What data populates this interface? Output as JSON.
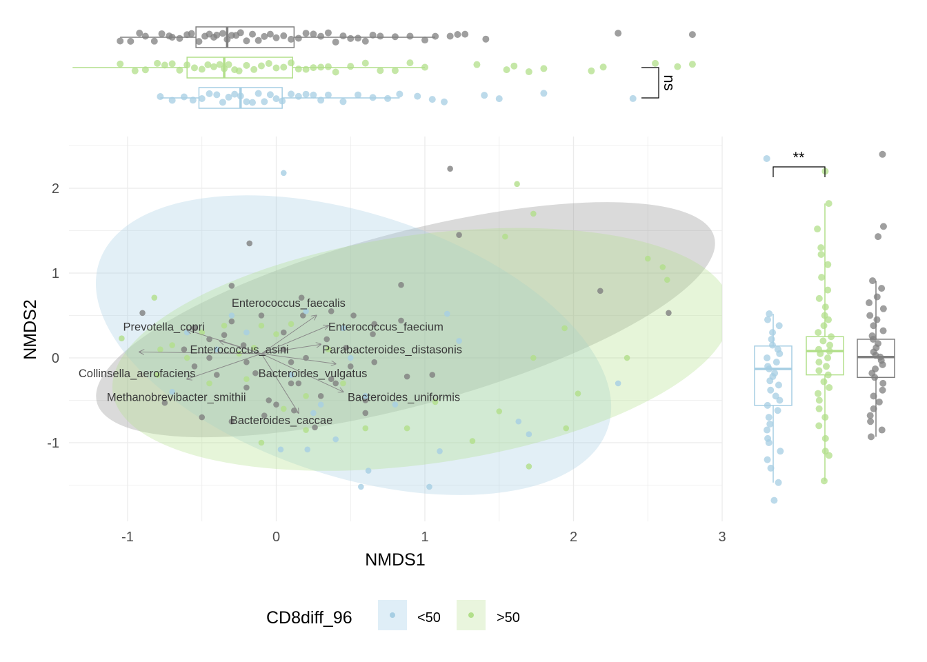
{
  "chart_data": {
    "type": "scatter",
    "title": "",
    "xlabel": "NMDS1",
    "ylabel": "NMDS2",
    "xlim": [
      -1.4,
      3.0
    ],
    "ylim": [
      -1.9,
      2.5
    ],
    "x_ticks": [
      -1,
      0,
      1,
      2,
      3
    ],
    "y_ticks": [
      -1,
      0,
      1,
      2
    ],
    "grid": true,
    "legend": {
      "title": "CD8diff_96",
      "position": "bottom",
      "entries": [
        {
          "label": "<50",
          "color": "#a6cee3"
        },
        {
          "label": ">50",
          "color": "#b2df8a"
        }
      ]
    },
    "colors": {
      "lt50": "#a6cee3",
      "gt50": "#b2df8a",
      "other": "#7f7f7f"
    },
    "series": [
      {
        "key": "gray",
        "color": "#7f7f7f",
        "ellipse": {
          "cx": 0.87,
          "cy": 0.45,
          "rx": 2.15,
          "ry": 1.02,
          "angle": 15
        },
        "points": [
          [
            -0.9,
            0.53
          ],
          [
            -0.55,
            0.35
          ],
          [
            -0.3,
            0.43
          ],
          [
            -0.62,
            0.1
          ],
          [
            -0.45,
            0.0
          ],
          [
            -0.2,
            -0.05
          ],
          [
            0.05,
            0.3
          ],
          [
            -0.35,
            0.27
          ],
          [
            -0.1,
            0.5
          ],
          [
            0.2,
            0.0
          ],
          [
            0.15,
            -0.3
          ],
          [
            0.3,
            -0.45
          ],
          [
            -0.05,
            -0.5
          ],
          [
            0.0,
            -0.55
          ],
          [
            -0.2,
            -0.35
          ],
          [
            -0.4,
            -0.2
          ],
          [
            -0.3,
            -0.75
          ],
          [
            -0.75,
            -0.53
          ],
          [
            -0.5,
            -0.7
          ],
          [
            0.12,
            -0.62
          ],
          [
            0.26,
            -0.82
          ],
          [
            0.37,
            0.55
          ],
          [
            0.52,
            0.5
          ],
          [
            0.66,
            0.4
          ],
          [
            0.65,
            0.28
          ],
          [
            0.66,
            -0.05
          ],
          [
            0.5,
            -0.1
          ],
          [
            -0.3,
            0.85
          ],
          [
            0.17,
            0.71
          ],
          [
            0.18,
            0.5
          ],
          [
            -0.18,
            1.35
          ],
          [
            0.84,
            0.44
          ],
          [
            1.05,
            -0.2
          ],
          [
            0.88,
            -0.22
          ],
          [
            1.17,
            2.23
          ],
          [
            1.23,
            1.45
          ],
          [
            0.84,
            0.86
          ],
          [
            2.18,
            0.79
          ],
          [
            2.64,
            0.53
          ],
          [
            0.37,
            -0.25
          ],
          [
            0.1,
            -0.3
          ],
          [
            0.1,
            -0.05
          ],
          [
            -0.55,
            -0.1
          ],
          [
            -0.14,
            -0.18
          ],
          [
            -0.22,
            0.15
          ],
          [
            -0.45,
            0.22
          ],
          [
            0.05,
            0.1
          ],
          [
            0.4,
            -0.3
          ],
          [
            0.6,
            -0.65
          ],
          [
            0.6,
            -0.5
          ],
          [
            0.47,
            0.12
          ],
          [
            0.34,
            0.22
          ],
          [
            -0.08,
            -0.68
          ]
        ]
      },
      {
        "key": "lt50",
        "color": "#a6cee3",
        "ellipse": {
          "cx": 0.52,
          "cy": 0.15,
          "rx": 1.8,
          "ry": 1.55,
          "angle": -18
        },
        "points": [
          [
            0.05,
            2.18
          ],
          [
            0.45,
            0.35
          ],
          [
            0.6,
            -0.45
          ],
          [
            0.8,
            -0.55
          ],
          [
            1.15,
            0.52
          ],
          [
            1.23,
            0.2
          ],
          [
            1.03,
            -1.52
          ],
          [
            1.1,
            -1.1
          ],
          [
            0.62,
            -1.33
          ],
          [
            0.57,
            -1.52
          ],
          [
            0.4,
            -0.96
          ],
          [
            0.03,
            -1.08
          ],
          [
            0.21,
            -1.08
          ],
          [
            1.63,
            -0.75
          ],
          [
            1.7,
            -0.9
          ],
          [
            2.3,
            -0.3
          ],
          [
            -0.6,
            0.3
          ],
          [
            -0.4,
            0.1
          ],
          [
            -0.2,
            0.3
          ],
          [
            0.1,
            -0.2
          ],
          [
            -0.7,
            -0.4
          ],
          [
            -0.3,
            0.5
          ],
          [
            0.2,
            0.55
          ],
          [
            0.25,
            -0.65
          ],
          [
            0.3,
            -0.55
          ],
          [
            0.5,
            0.0
          ]
        ]
      },
      {
        "key": "gt50",
        "color": "#b2df8a",
        "ellipse": {
          "cx": 0.98,
          "cy": 0.1,
          "rx": 2.1,
          "ry": 1.35,
          "angle": 8
        },
        "points": [
          [
            1.62,
            2.05
          ],
          [
            1.73,
            1.7
          ],
          [
            1.54,
            1.43
          ],
          [
            2.5,
            1.17
          ],
          [
            2.6,
            1.07
          ],
          [
            2.63,
            0.92
          ],
          [
            1.94,
            0.35
          ],
          [
            1.73,
            0.0
          ],
          [
            2.36,
            0.0
          ],
          [
            2.03,
            -0.42
          ],
          [
            1.95,
            -0.83
          ],
          [
            1.5,
            -0.63
          ],
          [
            1.32,
            -0.98
          ],
          [
            1.7,
            -1.28
          ],
          [
            0.6,
            -0.83
          ],
          [
            0.88,
            -0.83
          ],
          [
            -1.04,
            0.23
          ],
          [
            -0.82,
            0.71
          ],
          [
            -0.78,
            0.1
          ],
          [
            -0.6,
            0.0
          ],
          [
            -0.5,
            0.3
          ],
          [
            -0.35,
            0.38
          ],
          [
            -0.25,
            0.05
          ],
          [
            -0.2,
            -0.25
          ],
          [
            -0.1,
            0.38
          ],
          [
            0.0,
            0.28
          ],
          [
            0.2,
            -0.45
          ],
          [
            0.35,
            0.1
          ],
          [
            -0.7,
            0.15
          ],
          [
            -0.8,
            -0.2
          ],
          [
            -0.1,
            -1.0
          ],
          [
            0.05,
            -0.6
          ],
          [
            0.2,
            -0.85
          ],
          [
            0.45,
            -0.3
          ],
          [
            1.07,
            -0.52
          ],
          [
            -0.45,
            -0.3
          ],
          [
            -0.15,
            0.12
          ],
          [
            0.1,
            0.4
          ]
        ]
      }
    ],
    "arrows": [
      {
        "label": "Enterococcus_faecalis",
        "x": 0.27,
        "y": 0.5
      },
      {
        "label": "Prevotella_copri",
        "x": -0.6,
        "y": 0.33
      },
      {
        "label": "Enterococcus_faecium",
        "x": 0.35,
        "y": 0.38
      },
      {
        "label": "Enterococcus_asini",
        "x": -0.38,
        "y": 0.2
      },
      {
        "label": "Parabacteroides_distasonis",
        "x": 0.3,
        "y": 0.16
      },
      {
        "label": "Collinsella_aerofaciens",
        "x": -0.92,
        "y": 0.07
      },
      {
        "label": "Bacteroides_vulgatus",
        "x": 0.4,
        "y": -0.07
      },
      {
        "label": "Methanobrevibacter_smithii",
        "x": -0.6,
        "y": -0.25
      },
      {
        "label": "Bacteroides_uniformis",
        "x": 0.45,
        "y": -0.4
      },
      {
        "label": "Bacteroides_caccae",
        "x": 0.15,
        "y": -0.65
      }
    ],
    "arrow_origin": [
      -0.1,
      0.05
    ],
    "arrow_labels": [
      {
        "label": "Enterococcus_faecalis",
        "x": -0.3,
        "y": 0.65,
        "anchor": "start"
      },
      {
        "label": "Prevotella_copri",
        "x": -1.03,
        "y": 0.37,
        "anchor": "start"
      },
      {
        "label": "Enterococcus_faecium",
        "x": 0.35,
        "y": 0.37,
        "anchor": "start"
      },
      {
        "label": "Enterococcus_asini",
        "x": -0.58,
        "y": 0.1,
        "anchor": "start"
      },
      {
        "label": "Parabacteroides_distasonis",
        "x": 0.31,
        "y": 0.1,
        "anchor": "start"
      },
      {
        "label": "Collinsella_aerofaciens",
        "x": -1.33,
        "y": -0.18,
        "anchor": "start"
      },
      {
        "label": "Bacteroides_vulgatus",
        "x": -0.12,
        "y": -0.18,
        "anchor": "start"
      },
      {
        "label": "Methanobrevibacter_smithii",
        "x": -1.14,
        "y": -0.46,
        "anchor": "start"
      },
      {
        "label": "Bacteroides_uniformis",
        "x": 0.48,
        "y": -0.46,
        "anchor": "start"
      },
      {
        "label": "Bacteroides_caccae",
        "x": -0.31,
        "y": -0.73,
        "anchor": "start"
      }
    ],
    "top_boxplots": [
      {
        "key": "gray",
        "color": "#7f7f7f",
        "q1": -0.54,
        "median": -0.33,
        "q3": 0.12,
        "min": -1.05,
        "max": 1.07,
        "outliers": [
          1.17,
          1.22,
          1.27,
          1.41,
          2.3,
          2.8
        ],
        "points": [
          -1.05,
          -0.98,
          -0.92,
          -0.88,
          -0.82,
          -0.77,
          -0.72,
          -0.7,
          -0.65,
          -0.6,
          -0.57,
          -0.52,
          -0.48,
          -0.45,
          -0.42,
          -0.4,
          -0.36,
          -0.33,
          -0.3,
          -0.27,
          -0.24,
          -0.2,
          -0.16,
          -0.12,
          -0.08,
          -0.04,
          0.0,
          0.05,
          0.1,
          0.15,
          0.2,
          0.25,
          0.3,
          0.35,
          0.4,
          0.45,
          0.5,
          0.55,
          0.6,
          0.65,
          0.7,
          0.8,
          0.9,
          1.0,
          1.07,
          1.17,
          1.22,
          1.27,
          1.41,
          2.3,
          2.8
        ]
      },
      {
        "key": "gt50",
        "color": "#b2df8a",
        "q1": -0.6,
        "median": -0.35,
        "q3": 0.11,
        "min": -1.37,
        "max": 1.0,
        "outliers": [
          1.35,
          1.55,
          1.6,
          1.7,
          1.8,
          2.12,
          2.2,
          2.55,
          2.7,
          2.8
        ],
        "points": [
          -1.05,
          -0.95,
          -0.88,
          -0.8,
          -0.75,
          -0.7,
          -0.65,
          -0.6,
          -0.55,
          -0.5,
          -0.46,
          -0.42,
          -0.38,
          -0.35,
          -0.32,
          -0.28,
          -0.25,
          -0.2,
          -0.15,
          -0.1,
          -0.05,
          0.0,
          0.05,
          0.1,
          0.15,
          0.2,
          0.25,
          0.3,
          0.35,
          0.4,
          0.5,
          0.6,
          0.7,
          0.8,
          0.9,
          1.0,
          1.35,
          1.55,
          1.6,
          1.7,
          1.8,
          2.12,
          2.2,
          2.55,
          2.7,
          2.8
        ]
      },
      {
        "key": "lt50",
        "color": "#a6cee3",
        "q1": -0.52,
        "median": -0.24,
        "q3": 0.04,
        "min": -0.78,
        "max": 0.83,
        "outliers": [
          0.95,
          1.05,
          1.13,
          1.4,
          1.5,
          1.8,
          2.4
        ],
        "points": [
          -0.78,
          -0.7,
          -0.62,
          -0.56,
          -0.5,
          -0.45,
          -0.4,
          -0.36,
          -0.32,
          -0.28,
          -0.24,
          -0.2,
          -0.16,
          -0.12,
          -0.08,
          -0.04,
          0.0,
          0.04,
          0.1,
          0.15,
          0.2,
          0.25,
          0.3,
          0.35,
          0.45,
          0.55,
          0.65,
          0.75,
          0.83,
          0.95,
          1.05,
          1.13,
          1.4,
          1.5,
          1.8,
          2.4
        ]
      }
    ],
    "right_boxplots": [
      {
        "key": "lt50",
        "color": "#a6cee3",
        "q1": -0.56,
        "median": -0.13,
        "q3": 0.14,
        "min": -1.47,
        "max": 0.52,
        "outliers": [
          -1.68,
          2.35
        ],
        "points": [
          0.52,
          0.45,
          0.38,
          0.3,
          0.22,
          0.15,
          0.1,
          0.05,
          0.0,
          -0.05,
          -0.1,
          -0.13,
          -0.18,
          -0.22,
          -0.27,
          -0.32,
          -0.38,
          -0.45,
          -0.5,
          -0.56,
          -0.62,
          -0.7,
          -0.78,
          -0.85,
          -0.95,
          -1.0,
          -1.1,
          -1.2,
          -1.3,
          -1.47,
          -1.68,
          2.35
        ]
      },
      {
        "key": "gt50",
        "color": "#b2df8a",
        "q1": -0.2,
        "median": 0.08,
        "q3": 0.25,
        "min": -1.45,
        "max": 1.82,
        "outliers": [
          2.2
        ],
        "points": [
          1.82,
          1.52,
          1.3,
          1.22,
          1.1,
          0.95,
          0.8,
          0.7,
          0.6,
          0.5,
          0.45,
          0.38,
          0.3,
          0.25,
          0.2,
          0.15,
          0.1,
          0.08,
          0.05,
          0.0,
          -0.05,
          -0.1,
          -0.15,
          -0.2,
          -0.28,
          -0.35,
          -0.42,
          -0.5,
          -0.6,
          -0.7,
          -0.8,
          -0.95,
          -1.1,
          -1.15,
          -1.45,
          2.2
        ]
      },
      {
        "key": "gray",
        "color": "#7f7f7f",
        "q1": -0.23,
        "median": 0.01,
        "q3": 0.22,
        "min": -0.93,
        "max": 0.91,
        "outliers": [
          1.43,
          1.55,
          2.4
        ],
        "points": [
          0.91,
          0.82,
          0.72,
          0.65,
          0.58,
          0.5,
          0.45,
          0.38,
          0.32,
          0.26,
          0.22,
          0.17,
          0.12,
          0.07,
          0.03,
          0.01,
          -0.03,
          -0.08,
          -0.13,
          -0.18,
          -0.23,
          -0.3,
          -0.38,
          -0.45,
          -0.52,
          -0.6,
          -0.68,
          -0.75,
          -0.85,
          -0.93,
          1.43,
          1.55,
          2.4
        ]
      }
    ],
    "annotations": [
      {
        "label": "ns",
        "panel": "top"
      },
      {
        "label": "**",
        "panel": "right"
      }
    ]
  }
}
